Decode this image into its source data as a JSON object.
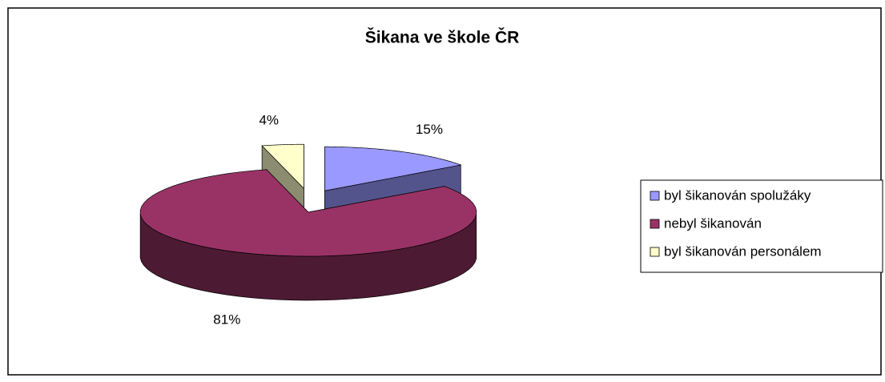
{
  "chart_data": {
    "type": "pie",
    "title": "Šikana ve škole ČR",
    "categories": [
      "byl šikanován spolužáky",
      "nebyl šikanován",
      "byl šikanován personálem"
    ],
    "values": [
      15,
      81,
      4
    ],
    "value_labels": [
      "15%",
      "81%",
      "4%"
    ],
    "colors": [
      "#9999ff",
      "#993366",
      "#ffffcc"
    ],
    "legend": "right"
  }
}
